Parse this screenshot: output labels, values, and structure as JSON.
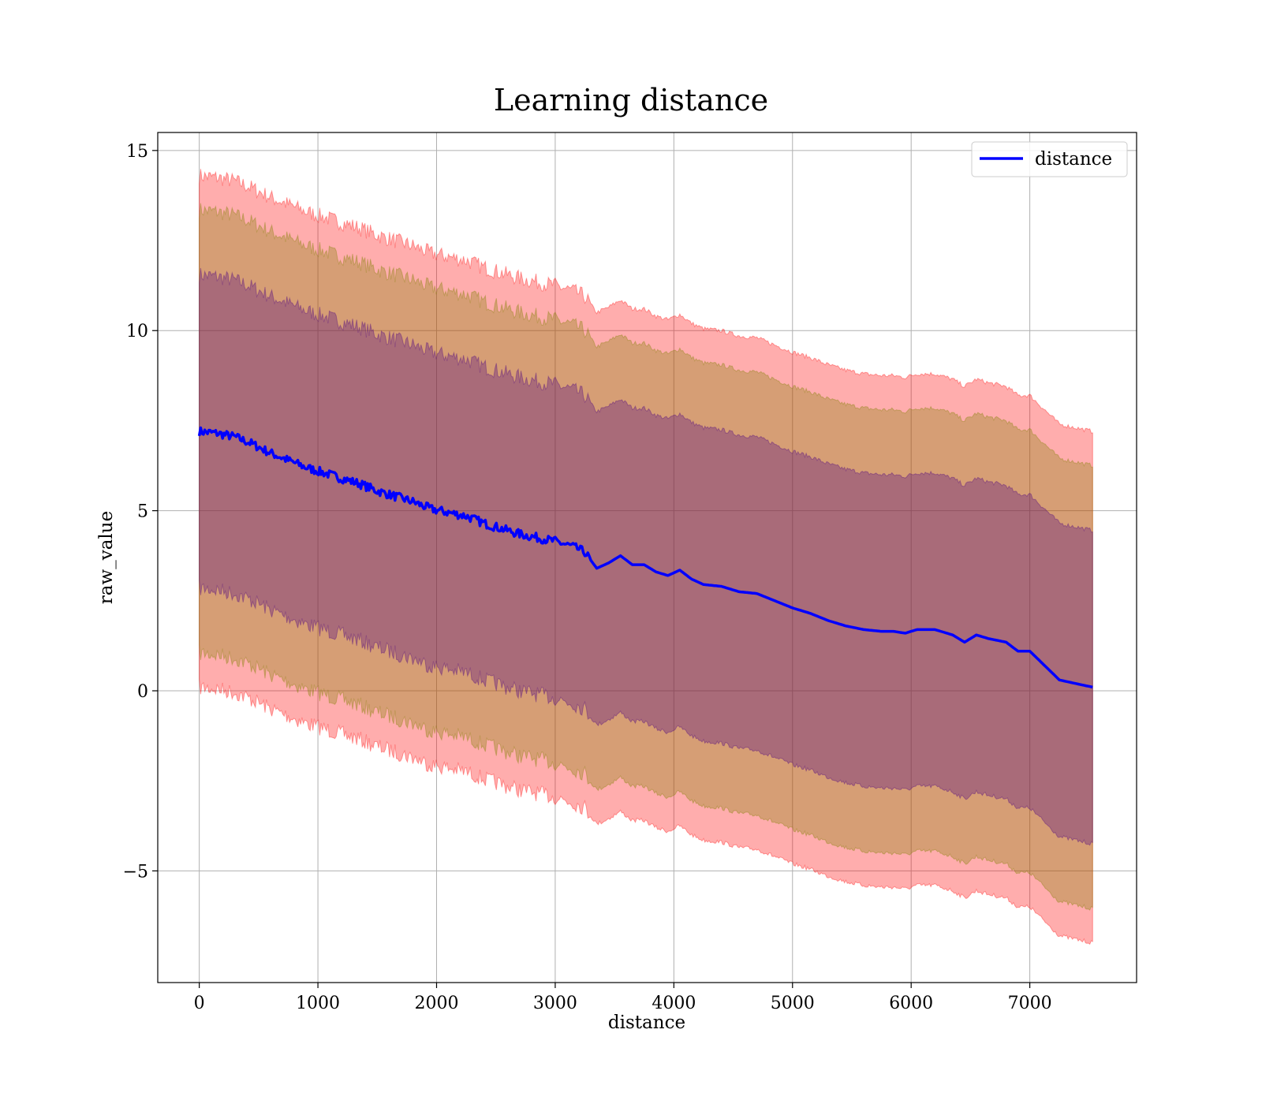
{
  "chart_data": {
    "type": "line",
    "title": "Learning distance",
    "xlabel": "distance",
    "ylabel": "raw_value",
    "xlim": [
      -350,
      7900
    ],
    "ylim": [
      -8.1,
      15.5
    ],
    "xticks": [
      0,
      1000,
      2000,
      3000,
      4000,
      5000,
      6000,
      7000
    ],
    "yticks": [
      -5,
      0,
      5,
      10,
      15
    ],
    "ytick_labels": [
      "−5",
      "0",
      "5",
      "10",
      "15"
    ],
    "grid": true,
    "legend": {
      "placement": "top-right",
      "entries": [
        "distance"
      ]
    },
    "colors": {
      "line": "#0000ff",
      "band_outer": "#ff0000",
      "band_middle": "#808000",
      "band_inner": "#4b0082"
    },
    "series": [
      {
        "name": "distance",
        "x": [
          0,
          150,
          300,
          450,
          600,
          750,
          900,
          1050,
          1200,
          1350,
          1500,
          1650,
          1800,
          1950,
          2100,
          2250,
          2400,
          2550,
          2700,
          2850,
          3000,
          3150,
          3250,
          3350,
          3450,
          3550,
          3650,
          3750,
          3850,
          3950,
          4050,
          4150,
          4250,
          4400,
          4550,
          4700,
          4850,
          5000,
          5150,
          5300,
          5450,
          5600,
          5750,
          5850,
          5950,
          6050,
          6200,
          6350,
          6450,
          6550,
          6650,
          6800,
          6900,
          7000,
          7250,
          7530
        ],
        "values": [
          7.2,
          7.15,
          7.05,
          6.85,
          6.6,
          6.4,
          6.2,
          6.05,
          5.9,
          5.75,
          5.55,
          5.4,
          5.25,
          5.05,
          4.95,
          4.85,
          4.65,
          4.5,
          4.35,
          4.25,
          4.15,
          4.0,
          3.85,
          3.4,
          3.55,
          3.75,
          3.5,
          3.5,
          3.3,
          3.2,
          3.35,
          3.1,
          2.95,
          2.9,
          2.75,
          2.7,
          2.5,
          2.3,
          2.15,
          1.95,
          1.8,
          1.7,
          1.65,
          1.65,
          1.6,
          1.7,
          1.7,
          1.55,
          1.35,
          1.55,
          1.45,
          1.35,
          1.1,
          1.1,
          0.3,
          0.1
        ]
      }
    ],
    "bands": [
      {
        "sigma": 3,
        "offset": 7.1,
        "color": "band_outer"
      },
      {
        "sigma": 2,
        "offset": 6.15,
        "color": "band_middle"
      },
      {
        "sigma": 1,
        "offset": 4.35,
        "color": "band_inner"
      }
    ]
  }
}
